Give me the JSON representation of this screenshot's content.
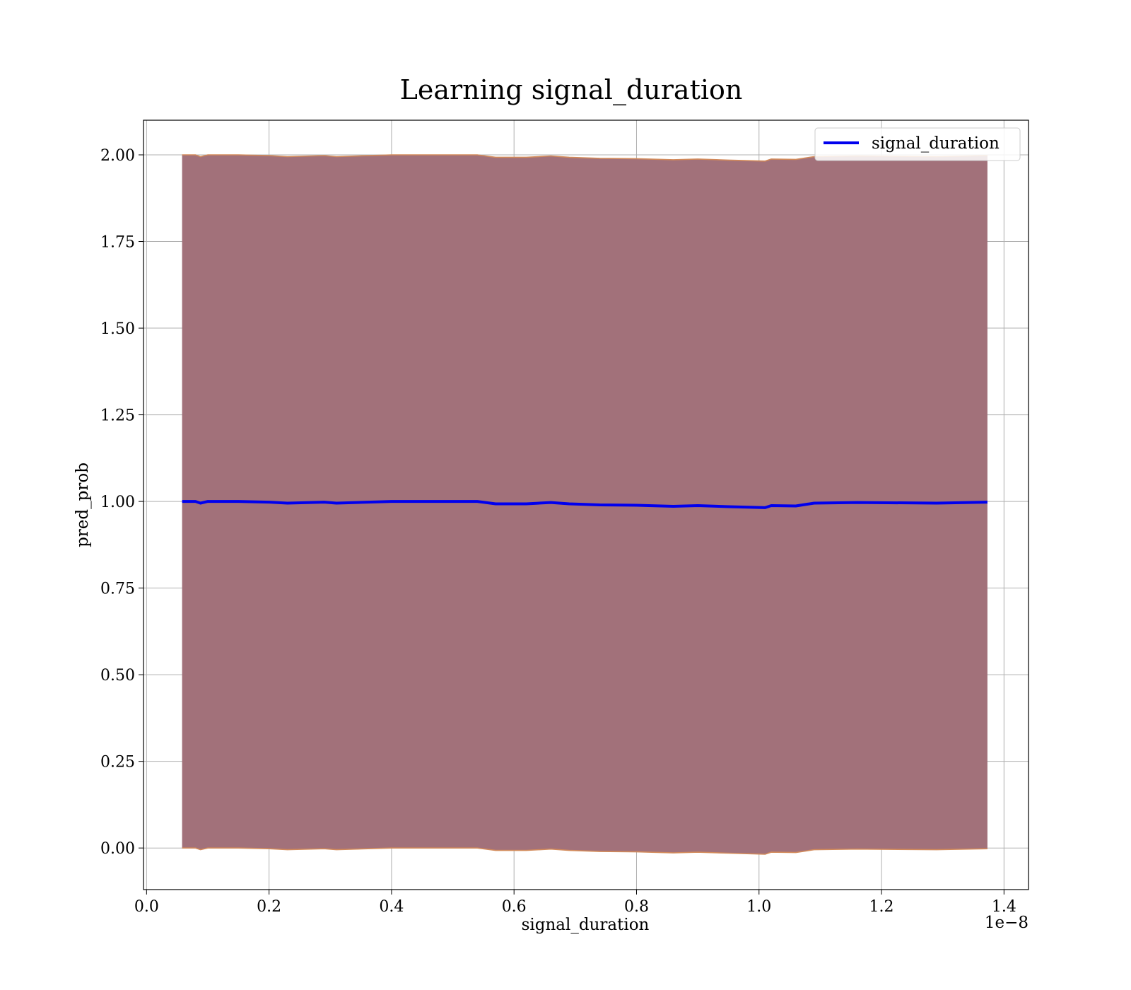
{
  "chart_data": {
    "type": "line",
    "title": "Learning signal_duration",
    "xlabel": "signal_duration",
    "ylabel": "pred_prob",
    "x_offset_label": "1e−8",
    "xlim": [
      -0.005,
      1.44
    ],
    "ylim": [
      -0.12,
      2.1
    ],
    "x_ticks": [
      0.0,
      0.2,
      0.4,
      0.6,
      0.8,
      1.0,
      1.2,
      1.4
    ],
    "x_tick_labels": [
      "0.0",
      "0.2",
      "0.4",
      "0.6",
      "0.8",
      "1.0",
      "1.2",
      "1.4"
    ],
    "y_ticks": [
      0.0,
      0.25,
      0.5,
      0.75,
      1.0,
      1.25,
      1.5,
      1.75,
      2.0
    ],
    "y_tick_labels": [
      "0.00",
      "0.25",
      "0.50",
      "0.75",
      "1.00",
      "1.25",
      "1.50",
      "1.75",
      "2.00"
    ],
    "grid": true,
    "legend_position": "upper right",
    "series": [
      {
        "name": "signal_duration",
        "color": "#0000ee",
        "x": [
          0.058,
          0.08,
          0.088,
          0.1,
          0.15,
          0.2,
          0.23,
          0.29,
          0.31,
          0.4,
          0.45,
          0.54,
          0.57,
          0.62,
          0.66,
          0.69,
          0.74,
          0.8,
          0.86,
          0.9,
          0.95,
          1.01,
          1.02,
          1.06,
          1.09,
          1.16,
          1.29,
          1.373
        ],
        "y": [
          1.0,
          1.0,
          0.995,
          1.0,
          1.0,
          0.998,
          0.995,
          0.998,
          0.995,
          1.0,
          1.0,
          1.0,
          0.993,
          0.993,
          0.997,
          0.993,
          0.99,
          0.989,
          0.986,
          0.988,
          0.985,
          0.982,
          0.988,
          0.987,
          0.995,
          0.997,
          0.995,
          0.998
        ]
      }
    ],
    "band": {
      "fill_color": "#a2717a",
      "edge_color": "#d28a5a",
      "x": [
        0.058,
        0.08,
        0.088,
        0.1,
        0.15,
        0.2,
        0.23,
        0.29,
        0.31,
        0.4,
        0.45,
        0.54,
        0.57,
        0.62,
        0.66,
        0.69,
        0.74,
        0.8,
        0.86,
        0.9,
        0.95,
        1.01,
        1.02,
        1.06,
        1.09,
        1.16,
        1.29,
        1.373
      ],
      "upper": [
        2.0,
        2.0,
        1.995,
        2.0,
        2.0,
        1.998,
        1.995,
        1.998,
        1.995,
        2.0,
        2.0,
        2.0,
        1.993,
        1.993,
        1.997,
        1.993,
        1.99,
        1.989,
        1.986,
        1.988,
        1.985,
        1.982,
        1.988,
        1.987,
        1.995,
        1.997,
        1.995,
        1.998
      ],
      "lower": [
        0.0,
        0.0,
        -0.005,
        0.0,
        0.0,
        -0.002,
        -0.005,
        -0.002,
        -0.005,
        0.0,
        0.0,
        0.0,
        -0.007,
        -0.007,
        -0.003,
        -0.007,
        -0.01,
        -0.011,
        -0.014,
        -0.012,
        -0.015,
        -0.018,
        -0.012,
        -0.013,
        -0.005,
        -0.003,
        -0.005,
        -0.002
      ]
    }
  }
}
